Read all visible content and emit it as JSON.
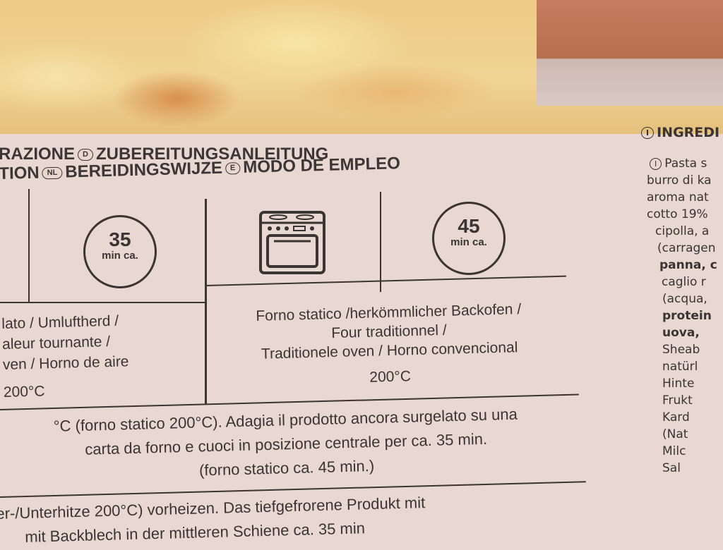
{
  "header": {
    "line1": [
      "RAZIONE",
      "D",
      "ZUBEREITUNGSANLEITUNG"
    ],
    "line2": [
      "TION",
      "NL",
      "BEREIDINGSWIJZE",
      "E",
      "MODO DE EMPLEO"
    ]
  },
  "clocks": [
    {
      "minutes": "35",
      "unit": "min ca."
    },
    {
      "minutes": "45",
      "unit": "min ca."
    }
  ],
  "icons": [
    "oven-icon",
    "clock-icon"
  ],
  "fan_oven": {
    "lines": [
      "lato / Umluftherd /",
      "aleur tournante /",
      "ven / Horno de aire"
    ],
    "temp": "200°C"
  },
  "static_oven": {
    "lines": [
      "Forno statico /herkömmlicher Backofen /",
      "Four traditionnel /",
      "Traditionele oven / Horno convencional"
    ],
    "temp": "200°C"
  },
  "italian": [
    "°C (forno statico 200°C). Adagia il prodotto ancora surgelato su una",
    "carta da forno e cuoci in posizione centrale per ca. 35 min.",
    "(forno statico ca. 45 min.)"
  ],
  "german": [
    "er-/Unterhitze 200°C) vorheizen. Das tiefgefrorene Produkt mit",
    "mit Backblech in der mittleren Schiene ca. 35 min"
  ],
  "ingredients": {
    "title_badge": "I",
    "title": "INGREDI",
    "badge": "I",
    "lines": [
      {
        "text": "Pasta s",
        "bold": false
      },
      {
        "text": "burro di ka",
        "bold": false
      },
      {
        "text": "aroma nat",
        "bold": false
      },
      {
        "text": "cotto 19%",
        "bold": false
      },
      {
        "text": "cipolla, a",
        "bold": false
      },
      {
        "text": "(carragen",
        "bold": false
      },
      {
        "text": "panna, c",
        "bold": true
      },
      {
        "text": "caglio r",
        "bold": false
      },
      {
        "text": "(acqua,",
        "bold": false
      },
      {
        "text": "protein",
        "bold": true
      },
      {
        "text": "uova,",
        "bold": true
      },
      {
        "text": "Sheab",
        "bold": false
      },
      {
        "text": "natürl",
        "bold": false
      },
      {
        "text": "Hinte",
        "bold": false
      },
      {
        "text": "Frukt",
        "bold": false
      },
      {
        "text": "Kard",
        "bold": false
      },
      {
        "text": "(Nat",
        "bold": false
      },
      {
        "text": "Milc",
        "bold": false
      },
      {
        "text": "Sal",
        "bold": false
      }
    ]
  }
}
